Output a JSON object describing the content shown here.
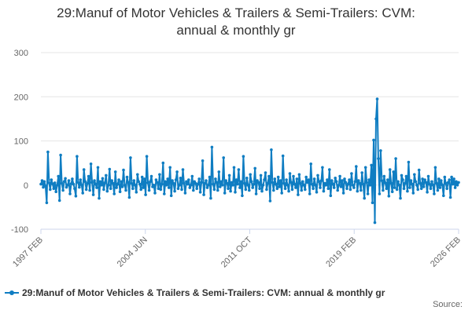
{
  "chart_data": {
    "type": "line",
    "title": "29:Manuf of Motor Vehicles & Trailers & Semi-Trailers: CVM:\nannual & monthly gr",
    "xlabel": "",
    "ylabel": "",
    "ylim": [
      -100,
      300
    ],
    "yticks": [
      -100,
      0,
      100,
      200,
      300
    ],
    "xticks": [
      "1997 FEB",
      "2004 JUN",
      "2011 OCT",
      "2019 FEB",
      "2026 FEB"
    ],
    "series": [
      {
        "name": "29:Manuf of Motor Vehicles & Trailers & Semi-Trailers: CVM: annual & monthly gr",
        "color": "#0f7dc2",
        "values": [
          2,
          10,
          -5,
          8,
          -2,
          -40,
          75,
          5,
          -10,
          12,
          3,
          -8,
          5,
          -15,
          0,
          20,
          -35,
          68,
          4,
          -12,
          8,
          15,
          -5,
          0,
          10,
          -20,
          3,
          14,
          2,
          -8,
          -25,
          65,
          6,
          -5,
          12,
          0,
          -18,
          35,
          8,
          -10,
          4,
          20,
          -12,
          48,
          6,
          -22,
          10,
          2,
          -6,
          40,
          -30,
          8,
          0,
          15,
          -10,
          5,
          22,
          -14,
          0,
          36,
          -8,
          10,
          4,
          -20,
          30,
          -6,
          2,
          12,
          -15,
          8,
          -4,
          34,
          0,
          -12,
          18,
          6,
          -28,
          62,
          4,
          -8,
          10,
          0,
          -16,
          24,
          8,
          2,
          -10,
          18,
          -6,
          14,
          -22,
          65,
          5,
          -12,
          8,
          20,
          -4,
          0,
          -18,
          12,
          6,
          -8,
          24,
          -10,
          2,
          50,
          -20,
          8,
          0,
          14,
          -6,
          40,
          -24,
          10,
          4,
          -14,
          12,
          30,
          -8,
          0,
          16,
          -10,
          35,
          4,
          -18,
          8,
          2,
          12,
          -6,
          0,
          20,
          -12,
          8,
          4,
          -8,
          2,
          14,
          -16,
          6,
          55,
          -22,
          4,
          10,
          -6,
          0,
          18,
          -30,
          86,
          2,
          -10,
          14,
          6,
          -12,
          30,
          -4,
          8,
          0,
          62,
          -18,
          10,
          4,
          -8,
          22,
          -14,
          6,
          0,
          40,
          -16,
          12,
          2,
          35,
          -6,
          8,
          -24,
          65,
          4,
          -10,
          16,
          0,
          -12,
          24,
          8,
          -6,
          2,
          38,
          -20,
          10,
          6,
          -8,
          22,
          -14,
          0,
          12,
          28,
          -10,
          4,
          20,
          -36,
          80,
          6,
          -12,
          14,
          2,
          -8,
          18,
          -4,
          10,
          -18,
          66,
          4,
          -8,
          12,
          0,
          -14,
          26,
          6,
          -10,
          20,
          2,
          -6,
          14,
          -22,
          24,
          4,
          -12,
          8,
          0,
          -10,
          18,
          6,
          12,
          -20,
          48,
          2,
          -8,
          14,
          0,
          -16,
          22,
          8,
          -6,
          10,
          40,
          -14,
          4,
          0,
          12,
          -8,
          35,
          -24,
          10,
          2,
          -6,
          16,
          8,
          -12,
          0,
          20,
          -4,
          10,
          -18,
          14,
          6,
          -8,
          2,
          12,
          -10,
          26,
          0,
          -6,
          8,
          42,
          -14,
          10,
          4,
          -12,
          28,
          2,
          -30,
          40,
          6,
          -20,
          12,
          0,
          45,
          -40,
          102,
          -85,
          150,
          195,
          60,
          -20,
          78,
          10,
          -12,
          20,
          5,
          -8,
          12,
          -25,
          35,
          4,
          -15,
          30,
          -6,
          60,
          -10,
          8,
          0,
          -30,
          22,
          12,
          -8,
          4,
          20,
          -14,
          52,
          -6,
          10,
          2,
          -18,
          24,
          8,
          0,
          -10,
          34,
          4,
          -8,
          14,
          -4,
          12,
          6,
          -16,
          20,
          2,
          -8,
          8,
          0,
          -20,
          40,
          4,
          -12,
          14,
          -6,
          10,
          0,
          -24,
          18,
          4,
          -8,
          6,
          12,
          -28,
          18,
          2,
          14,
          -6,
          8,
          0,
          6
        ]
      }
    ]
  },
  "legend": {
    "label": "29:Manuf of Motor Vehicles & Trailers & Semi-Trailers: CVM: annual & monthly gr"
  },
  "footer": {
    "source_label": "Source:"
  }
}
